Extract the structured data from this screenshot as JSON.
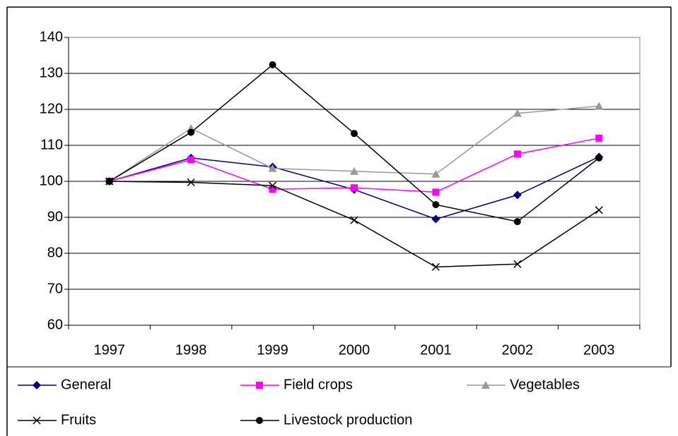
{
  "chart_data": {
    "type": "line",
    "categories": [
      "1997",
      "1998",
      "1999",
      "2000",
      "2001",
      "2002",
      "2003"
    ],
    "series": [
      {
        "name": "General",
        "color": "#000080",
        "marker": "diamond",
        "values": [
          100,
          106.5,
          104,
          97.7,
          89.5,
          96.2,
          106.8
        ]
      },
      {
        "name": "Field crops",
        "color": "#ff00ff",
        "marker": "square",
        "values": [
          100,
          106,
          97.8,
          98.2,
          97,
          107.6,
          112
        ]
      },
      {
        "name": "Vegetables",
        "color": "#999999",
        "marker": "triangle",
        "values": [
          100,
          114.7,
          103.6,
          102.8,
          102,
          118.9,
          120.9
        ]
      },
      {
        "name": "Fruits",
        "color": "#000000",
        "marker": "x",
        "values": [
          100,
          99.7,
          98.8,
          89.2,
          76.2,
          77,
          92
        ]
      },
      {
        "name": "Livestock production",
        "color": "#000000",
        "marker": "circle",
        "values": [
          100,
          113.6,
          132.4,
          113.3,
          93.5,
          88.8,
          106.5
        ]
      }
    ],
    "ylim": [
      60,
      140
    ],
    "yticks": [
      60,
      70,
      80,
      90,
      100,
      110,
      120,
      130,
      140
    ],
    "grid": true,
    "legend": "bottom"
  }
}
